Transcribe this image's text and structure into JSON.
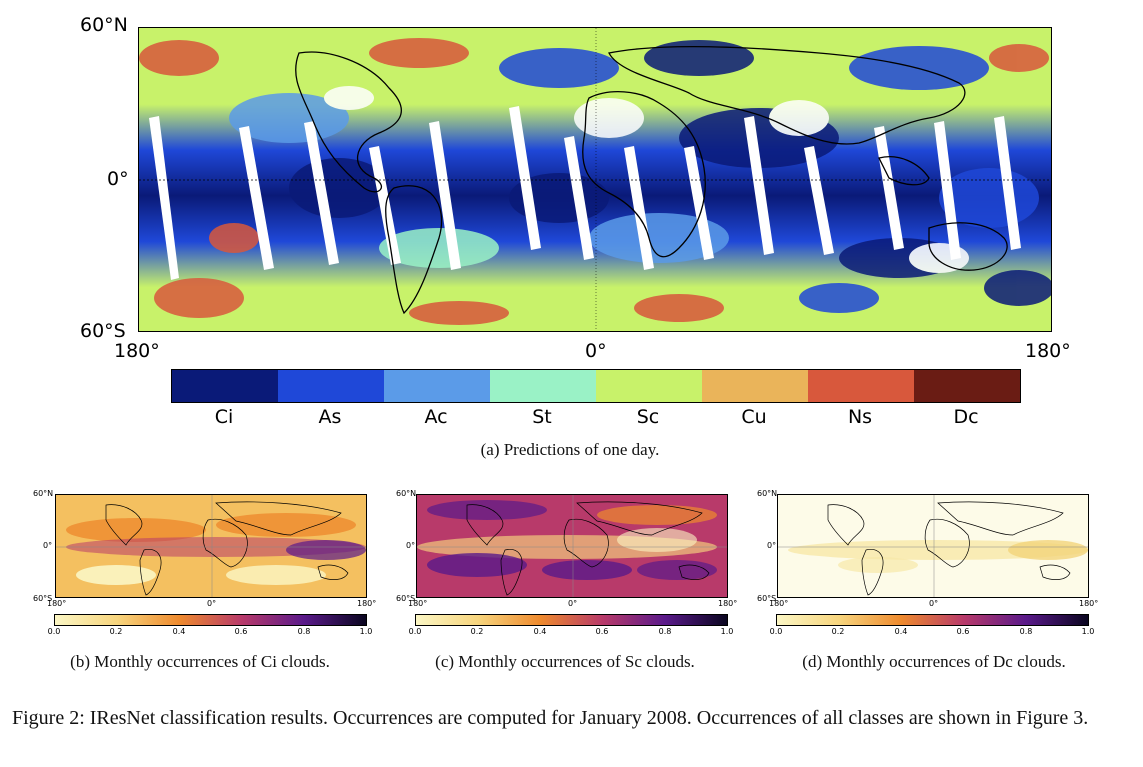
{
  "main_map": {
    "lat_top": "60°N",
    "lat_mid": "0°",
    "lat_bot": "60°S",
    "lon_left": "180°",
    "lon_mid": "0°",
    "lon_right": "180°"
  },
  "legend": [
    {
      "label": "Ci",
      "color": "#0a1a78"
    },
    {
      "label": "As",
      "color": "#1f48d8"
    },
    {
      "label": "Ac",
      "color": "#5b9be8"
    },
    {
      "label": "St",
      "color": "#9af2c6"
    },
    {
      "label": "Sc",
      "color": "#c8f26a"
    },
    {
      "label": "Cu",
      "color": "#eab45a"
    },
    {
      "label": "Ns",
      "color": "#d8583c"
    },
    {
      "label": "Dc",
      "color": "#6a1c14"
    }
  ],
  "caption_a": "(a) Predictions of one day.",
  "small_maps": {
    "lat_top": "60°N",
    "lat_mid": "0°",
    "lat_bot": "60°S",
    "lon_left": "180°",
    "lon_mid": "0°",
    "lon_right": "180°",
    "ticks": [
      "0.0",
      "0.2",
      "0.4",
      "0.6",
      "0.8",
      "1.0"
    ]
  },
  "caption_b": "(b) Monthly occurrences of Ci clouds.",
  "caption_c": "(c) Monthly occurrences of Sc clouds.",
  "caption_d": "(d) Monthly occurrences of Dc clouds.",
  "figure_caption": "Figure 2: IResNet classification results. Occurrences are computed for January 2008. Occurrences of all classes are shown in Figure 3."
}
